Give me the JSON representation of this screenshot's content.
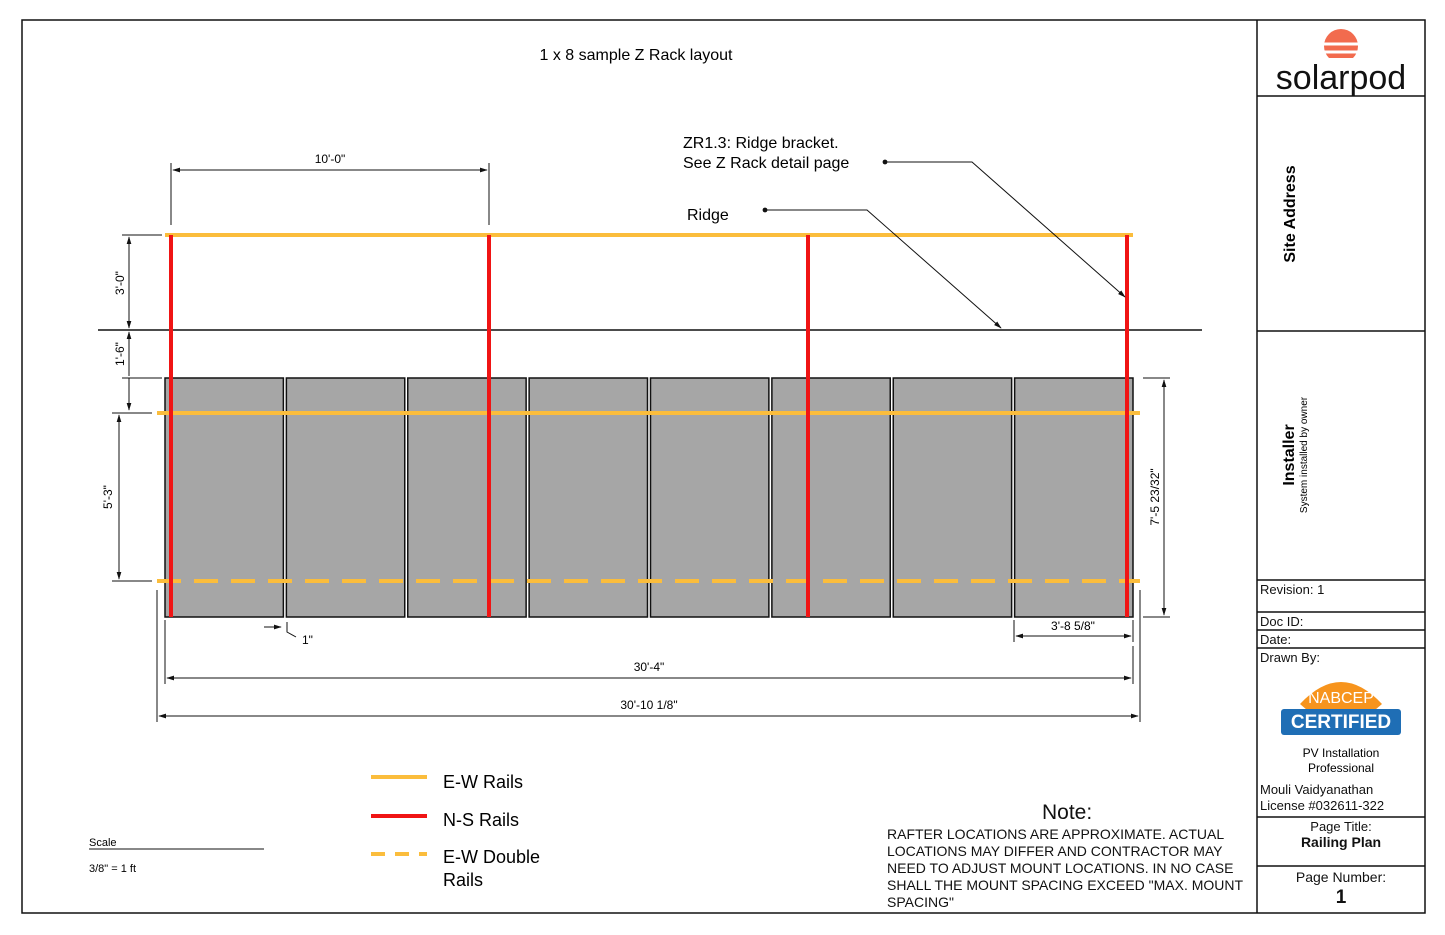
{
  "drawing": {
    "title": "1 x 8 sample Z Rack layout",
    "callouts": {
      "ridge_bracket_line1": "ZR1.3:  Ridge bracket.",
      "ridge_bracket_line2": "See Z Rack detail page",
      "ridge": "Ridge"
    },
    "dimensions": {
      "rail_spacing": "10'-0\"",
      "ridge_offset": "3'-0\"",
      "roof_line_gap": "1'-6\"",
      "double_rail_spacing": "5'-3\"",
      "panel_height": "7'-5 23/32\"",
      "panel_width": "3'-8 5/8\"",
      "panel_gap": "1\"",
      "array_width": "30'-4\"",
      "overall_width": "30'-10 1/8\""
    },
    "module_count": 8,
    "legend": [
      {
        "label": "E-W Rails",
        "color": "#FBBD3C",
        "style": "solid"
      },
      {
        "label": "N-S Rails",
        "color": "#F01414",
        "style": "solid"
      },
      {
        "label": "E-W Double Rails",
        "color": "#FBBD3C",
        "style": "dashed"
      }
    ],
    "scale": {
      "label": "Scale",
      "value": "3/8\" = 1 ft"
    },
    "note": {
      "title": "Note:",
      "body": "RAFTER LOCATIONS ARE APPROXIMATE. ACTUAL LOCATIONS MAY DIFFER AND CONTRACTOR MAY NEED TO ADJUST MOUNT LOCATIONS. IN NO CASE SHALL THE MOUNT SPACING EXCEED \"MAX. MOUNT SPACING\""
    },
    "colors": {
      "panel_fill": "#A6A6A6",
      "ew_rail": "#FBBD3C",
      "ns_rail": "#F01414",
      "logo_sun": "#F26B4E"
    }
  },
  "title_block": {
    "logo_text": "solarpod",
    "site_address_label": "Site Address",
    "installer_label": "Installer",
    "installer_value": "System installed by owner",
    "revision": "Revision: 1",
    "doc_id": "Doc ID:",
    "date": "Date:",
    "drawn_by": "Drawn By:",
    "badge": {
      "top": "NABCEP",
      "main": "CERTIFIED",
      "line1": "PV Installation",
      "line2": "Professional"
    },
    "engineer_name": "Mouli Vaidyanathan",
    "license": "License #032611-322",
    "page_title_label": "Page Title:",
    "page_title_value": "Railing Plan",
    "page_number_label": "Page Number:",
    "page_number_value": "1"
  }
}
